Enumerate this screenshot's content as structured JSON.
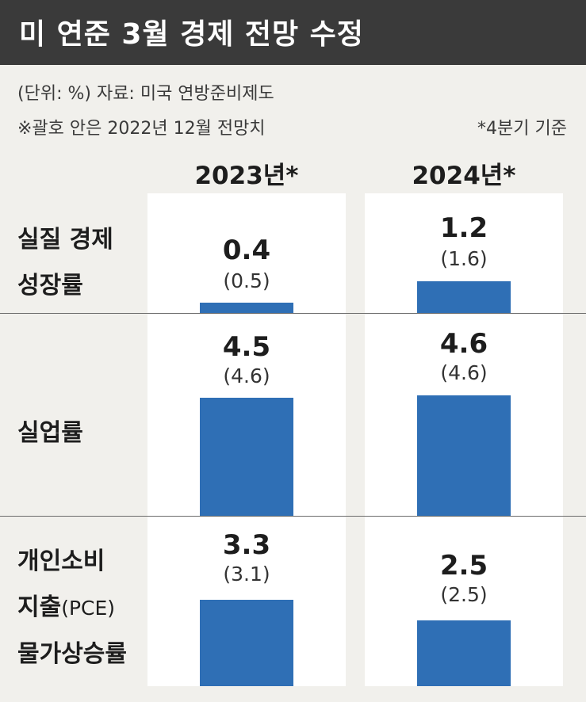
{
  "title": "미 연준 3월 경제 전망 수정",
  "unit_source": "(단위: %) 자료: 미국 연방준비제도",
  "note_parentheses": "※괄호 안은 2022년 12월 전망치",
  "note_q4": "*4분기 기준",
  "colors": {
    "bar": "#2f6fb5",
    "title_bg": "#3a3a3a",
    "panel": "#ffffff",
    "background": "#f1f0ec"
  },
  "chart_data": {
    "type": "bar",
    "categories": [
      "2023년*",
      "2024년*"
    ],
    "ylim": [
      0,
      5
    ],
    "rows": [
      {
        "label_lines": [
          "실질 경제",
          "성장률"
        ],
        "values": [
          0.4,
          1.2
        ],
        "prev_values": [
          0.5,
          1.6
        ],
        "values_text": [
          "0.4",
          "1.2"
        ],
        "prev_text": [
          "(0.5)",
          "(1.6)"
        ]
      },
      {
        "label_lines": [
          "실업률"
        ],
        "values": [
          4.5,
          4.6
        ],
        "prev_values": [
          4.6,
          4.6
        ],
        "values_text": [
          "4.5",
          "4.6"
        ],
        "prev_text": [
          "(4.6)",
          "(4.6)"
        ]
      },
      {
        "label_lines": [
          "개인소비",
          "지출",
          "물가상승률"
        ],
        "label_suffix": "(PCE)",
        "values": [
          3.3,
          2.5
        ],
        "prev_values": [
          3.1,
          2.5
        ],
        "values_text": [
          "3.3",
          "2.5"
        ],
        "prev_text": [
          "(3.1)",
          "(2.5)"
        ]
      }
    ]
  }
}
